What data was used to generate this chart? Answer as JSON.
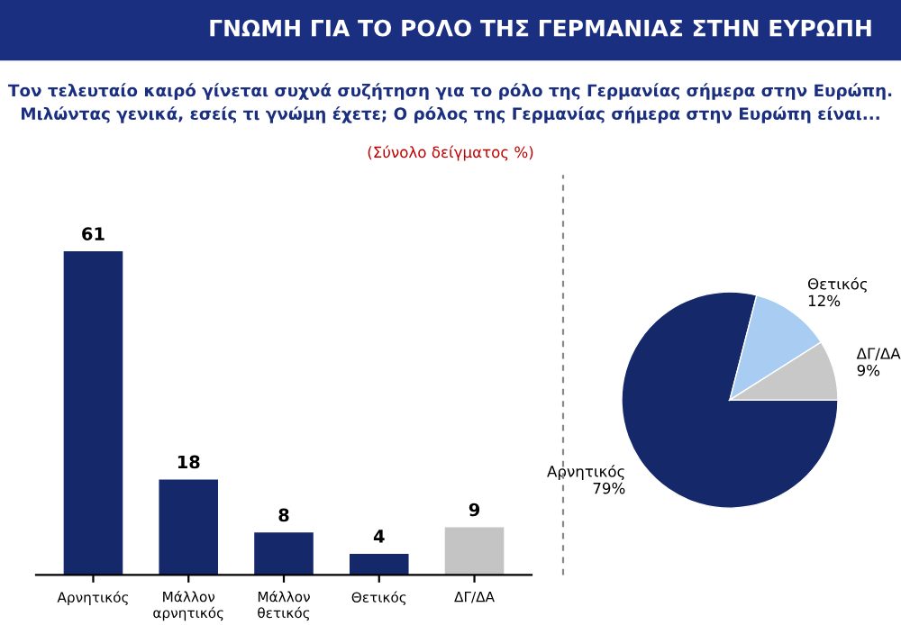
{
  "chart_data": [
    {
      "type": "bar",
      "title": "ΓΝΩΜΗ ΓΙΑ ΤΟ ΡΟΛΟ ΤΗΣ ΓΕΡΜΑΝΙΑΣ ΣΤΗΝ ΕΥΡΩΠΗ",
      "subtitle": "Τον τελευταίο καιρό γίνεται συχνά συζήτηση για το ρόλο της Γερμανίας σήμερα στην Ευρώπη.\nΜιλώντας γενικά, εσείς τι γνώμη έχετε; Ο ρόλος της Γερμανίας σήμερα στην Ευρώπη είναι...",
      "annotations": [
        "(Σύνολο δείγματος %)"
      ],
      "categories": [
        "Αρνητικός",
        "Μάλλον\nαρνητικός",
        "Μάλλον\nθετικός",
        "Θετικός",
        "ΔΓ/ΔΑ"
      ],
      "values": [
        61,
        18,
        8,
        4,
        9
      ],
      "colors": [
        "#14286a",
        "#14286a",
        "#14286a",
        "#14286a",
        "#c4c4c4"
      ],
      "data_labels": true,
      "tick_labels": "x",
      "grid": false,
      "legend": false
    },
    {
      "type": "pie",
      "categories": [
        "Αρνητικός",
        "Θετικός",
        "ΔΓ/ΔΑ"
      ],
      "values": [
        79,
        12,
        9
      ],
      "value_labels": [
        "79%",
        "12%",
        "9%"
      ],
      "colors": [
        "#14286a",
        "#a9cdf2",
        "#c8c8c8"
      ],
      "legend": false
    }
  ]
}
